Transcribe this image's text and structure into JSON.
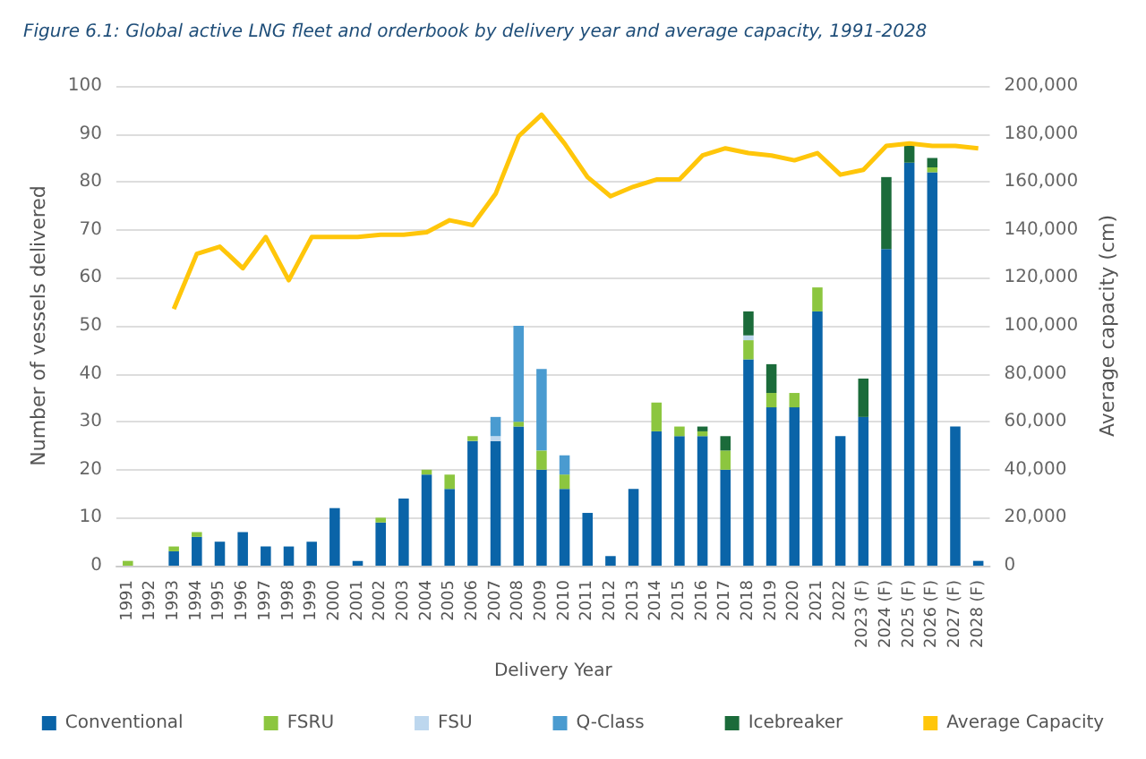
{
  "chart_data": {
    "type": "bar",
    "stacked": true,
    "title": "Figure 6.1: Global active LNG fleet and orderbook by delivery year and average capacity, 1991-2028",
    "xlabel": "Delivery Year",
    "ylabel": "Number of vessels delivered",
    "y2label": "Average capacity (cm)",
    "categories": [
      "1991",
      "1992",
      "1993",
      "1994",
      "1995",
      "1996",
      "1997",
      "1998",
      "1999",
      "2000",
      "2001",
      "2002",
      "2003",
      "2004",
      "2005",
      "2006",
      "2007",
      "2008",
      "2009",
      "2010",
      "2011",
      "2012",
      "2013",
      "2014",
      "2015",
      "2016",
      "2017",
      "2018",
      "2019",
      "2020",
      "2021",
      "2022",
      "2023 (F)",
      "2024 (F)",
      "2025 (F)",
      "2026 (F)",
      "2027 (F)",
      "2028 (F)"
    ],
    "series": [
      {
        "name": "Conventional",
        "color": "#0a64a8",
        "values": [
          0,
          0,
          3,
          6,
          5,
          7,
          4,
          4,
          5,
          12,
          1,
          9,
          14,
          19,
          16,
          26,
          26,
          29,
          20,
          16,
          11,
          2,
          16,
          28,
          27,
          27,
          20,
          43,
          33,
          33,
          53,
          27,
          31,
          66,
          84,
          82,
          29,
          1
        ]
      },
      {
        "name": "FSRU",
        "color": "#8cc63f",
        "values": [
          1,
          0,
          1,
          1,
          0,
          0,
          0,
          0,
          0,
          0,
          0,
          1,
          0,
          1,
          3,
          1,
          0,
          1,
          4,
          3,
          0,
          0,
          0,
          6,
          2,
          1,
          4,
          4,
          3,
          3,
          5,
          0,
          0,
          0,
          0,
          1,
          0,
          0
        ]
      },
      {
        "name": "FSU",
        "color": "#bdd7ee",
        "values": [
          0,
          0,
          0,
          0,
          0,
          0,
          0,
          0,
          0,
          0,
          0,
          0,
          0,
          0,
          0,
          0,
          1,
          0,
          0,
          0,
          0,
          0,
          0,
          0,
          0,
          0,
          0,
          1,
          0,
          0,
          0,
          0,
          0,
          0,
          0,
          0,
          0,
          0
        ]
      },
      {
        "name": "Q-Class",
        "color": "#4a9bd0",
        "values": [
          0,
          0,
          0,
          0,
          0,
          0,
          0,
          0,
          0,
          0,
          0,
          0,
          0,
          0,
          0,
          0,
          4,
          20,
          17,
          4,
          0,
          0,
          0,
          0,
          0,
          0,
          0,
          0,
          0,
          0,
          0,
          0,
          0,
          0,
          0,
          0,
          0,
          0
        ]
      },
      {
        "name": "Icebreaker",
        "color": "#1b6b3a",
        "values": [
          0,
          0,
          0,
          0,
          0,
          0,
          0,
          0,
          0,
          0,
          0,
          0,
          0,
          0,
          0,
          0,
          0,
          0,
          0,
          0,
          0,
          0,
          0,
          0,
          0,
          1,
          3,
          5,
          6,
          0,
          0,
          0,
          8,
          15,
          4,
          2,
          0,
          0
        ]
      },
      {
        "name": "Average Capacity",
        "type": "line",
        "axis": "y2",
        "color": "#ffc60a",
        "values": [
          null,
          null,
          107000,
          130000,
          133000,
          124000,
          137000,
          119000,
          137000,
          137000,
          137000,
          138000,
          138000,
          139000,
          144000,
          142000,
          155000,
          179000,
          188000,
          176000,
          162000,
          154000,
          158000,
          161000,
          161000,
          171000,
          174000,
          172000,
          171000,
          169000,
          172000,
          163000,
          165000,
          175000,
          176000,
          175000,
          175000,
          174000
        ]
      }
    ],
    "ylim": [
      0,
      100
    ],
    "yticks": [
      0,
      10,
      20,
      30,
      40,
      50,
      60,
      70,
      80,
      90,
      100
    ],
    "y2lim": [
      0,
      200000
    ],
    "y2ticks": [
      0,
      {
        "value": 20000,
        "label": "20,000"
      },
      {
        "value": 40000,
        "label": "40,000"
      },
      {
        "value": 60000,
        "label": "60,000"
      },
      {
        "value": 80000,
        "label": "80,000"
      },
      {
        "value": 100000,
        "label": "100,000"
      },
      {
        "value": 120000,
        "label": "120,000"
      },
      {
        "value": 140000,
        "label": "140,000"
      },
      {
        "value": 160000,
        "label": "160,000"
      },
      {
        "value": 180000,
        "label": "180,000"
      },
      {
        "value": 200000,
        "label": "200,000"
      }
    ],
    "grid": "y",
    "legend": "bottom",
    "marker": "none",
    "line_style": "solid"
  }
}
